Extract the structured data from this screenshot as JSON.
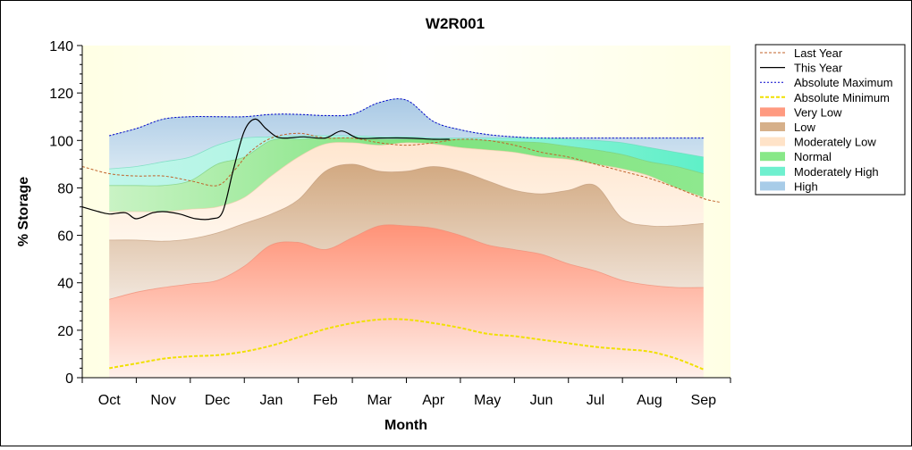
{
  "chart_data": {
    "type": "area",
    "title": "W2R001",
    "xlabel": "Month",
    "ylabel": "% Storage",
    "ylim": [
      0,
      140
    ],
    "yticks": [
      0,
      20,
      40,
      60,
      80,
      100,
      120,
      140
    ],
    "months": [
      "Oct",
      "Nov",
      "Dec",
      "Jan",
      "Feb",
      "Mar",
      "Apr",
      "May",
      "Jun",
      "Jul",
      "Aug",
      "Sep"
    ],
    "x_range": [
      -0.5,
      11.5
    ],
    "grid": false,
    "legend_position": "right",
    "legend": [
      {
        "label": "Last Year",
        "kind": "line",
        "color": "#c0622a",
        "dash": "3,2",
        "width": 1
      },
      {
        "label": "This Year",
        "kind": "line",
        "color": "#000000",
        "dash": "",
        "width": 1.2
      },
      {
        "label": "Absolute Maximum",
        "kind": "line",
        "color": "#0000cc",
        "dash": "2,2",
        "width": 1
      },
      {
        "label": "Absolute Minimum",
        "kind": "line",
        "color": "#f0e000",
        "dash": "4,2",
        "width": 2
      },
      {
        "label": "Very Low",
        "kind": "band",
        "color": "#ff9a80"
      },
      {
        "label": "Low",
        "kind": "band",
        "color": "#d6b08a"
      },
      {
        "label": "Moderately Low",
        "kind": "band",
        "color": "#ffe3c8"
      },
      {
        "label": "Normal",
        "kind": "band",
        "color": "#88e888"
      },
      {
        "label": "Moderately High",
        "kind": "band",
        "color": "#6ff0cf"
      },
      {
        "label": "High",
        "kind": "band",
        "color": "#a8cce8"
      }
    ],
    "band_x": [
      0,
      0.5,
      1,
      1.5,
      2,
      2.5,
      3,
      3.5,
      4,
      4.5,
      5,
      5.5,
      6,
      6.5,
      7,
      7.5,
      8,
      8.5,
      9,
      9.5,
      10,
      10.5,
      11
    ],
    "band_bounds": {
      "very_low_top": [
        33,
        36,
        38,
        39.5,
        41,
        47,
        56,
        57,
        54,
        59,
        64,
        64,
        63,
        60,
        56,
        54,
        52,
        48,
        45,
        41,
        39,
        38,
        38
      ],
      "low_top": [
        58,
        58,
        57.5,
        58.5,
        61,
        65,
        69,
        75,
        87,
        90,
        87,
        87,
        89,
        87,
        83,
        79,
        77.5,
        79,
        81,
        67,
        64,
        64,
        65
      ],
      "mod_low_top": [
        70,
        70,
        70,
        71,
        72,
        76,
        85,
        93,
        98.5,
        99,
        98,
        99,
        98.5,
        97,
        96,
        95,
        93,
        92,
        90,
        88,
        85,
        80,
        76
      ],
      "normal_top": [
        81,
        81,
        81,
        83,
        90,
        93,
        100,
        100.5,
        101,
        101,
        100.5,
        100.5,
        100.5,
        100.5,
        100,
        99.5,
        99,
        97.5,
        96,
        94,
        91,
        89,
        86
      ],
      "mod_high_top": [
        88,
        89,
        91,
        93,
        98,
        101,
        101.5,
        102,
        102,
        102,
        101.5,
        101.5,
        101,
        101,
        101,
        101,
        101,
        100.5,
        100,
        99,
        97,
        95,
        93
      ],
      "high_top": [
        102,
        105,
        109,
        110,
        110,
        110,
        111,
        111,
        110.5,
        111,
        116,
        117,
        108,
        104.5,
        102.5,
        101.5,
        101,
        101,
        101,
        101,
        101,
        101,
        101
      ]
    },
    "series": [
      {
        "name": "Absolute Maximum",
        "x": [
          0,
          0.5,
          1,
          1.5,
          2,
          2.5,
          3,
          3.5,
          4,
          4.5,
          5,
          5.5,
          6,
          6.5,
          7,
          7.5,
          8,
          8.5,
          9,
          9.5,
          10,
          10.5,
          11
        ],
        "values": [
          102,
          105,
          109,
          110,
          110,
          110,
          111,
          111,
          110.5,
          111,
          116,
          117,
          108,
          104.5,
          102.5,
          101.5,
          101,
          101,
          101,
          101,
          101,
          101,
          101
        ]
      },
      {
        "name": "Absolute Minimum",
        "x": [
          0,
          0.5,
          1,
          1.5,
          2,
          2.5,
          3,
          3.5,
          4,
          4.5,
          5,
          5.5,
          6,
          6.5,
          7,
          7.5,
          8,
          8.5,
          9,
          9.5,
          10,
          10.5,
          11
        ],
        "values": [
          4,
          6,
          8,
          9,
          9.5,
          11,
          13.5,
          17,
          20.5,
          23,
          24.5,
          24.5,
          23,
          21,
          18.5,
          17.5,
          16,
          14.5,
          13,
          12,
          11,
          8,
          3.5
        ]
      },
      {
        "name": "Last Year",
        "x": [
          -0.5,
          0,
          0.5,
          1,
          1.5,
          2,
          2.3,
          2.6,
          3,
          3.5,
          4,
          4.5,
          5,
          5.5,
          6,
          6.5,
          7,
          7.5,
          8,
          8.5,
          9,
          9.5,
          10,
          10.5,
          11,
          11.3
        ],
        "values": [
          89,
          86,
          85,
          85,
          83,
          81,
          87,
          95,
          101,
          103,
          101,
          101,
          99,
          98,
          99,
          100.5,
          100,
          98,
          95,
          93,
          90,
          87,
          84,
          80,
          75.5,
          74
        ]
      },
      {
        "name": "This Year",
        "x": [
          -0.5,
          -0.2,
          0,
          0.3,
          0.5,
          0.8,
          1,
          1.3,
          1.6,
          1.9,
          2.1,
          2.3,
          2.5,
          2.7,
          2.9,
          3.1,
          3.3,
          3.6,
          4,
          4.3,
          4.6,
          5,
          5.5,
          6,
          6.3
        ],
        "values": [
          72,
          70,
          69,
          69.5,
          67,
          69.5,
          70,
          69,
          67,
          67,
          70,
          88,
          104,
          109,
          105,
          101.5,
          101,
          101.5,
          101,
          104,
          101,
          101,
          101,
          100.5,
          100.5
        ]
      }
    ]
  }
}
